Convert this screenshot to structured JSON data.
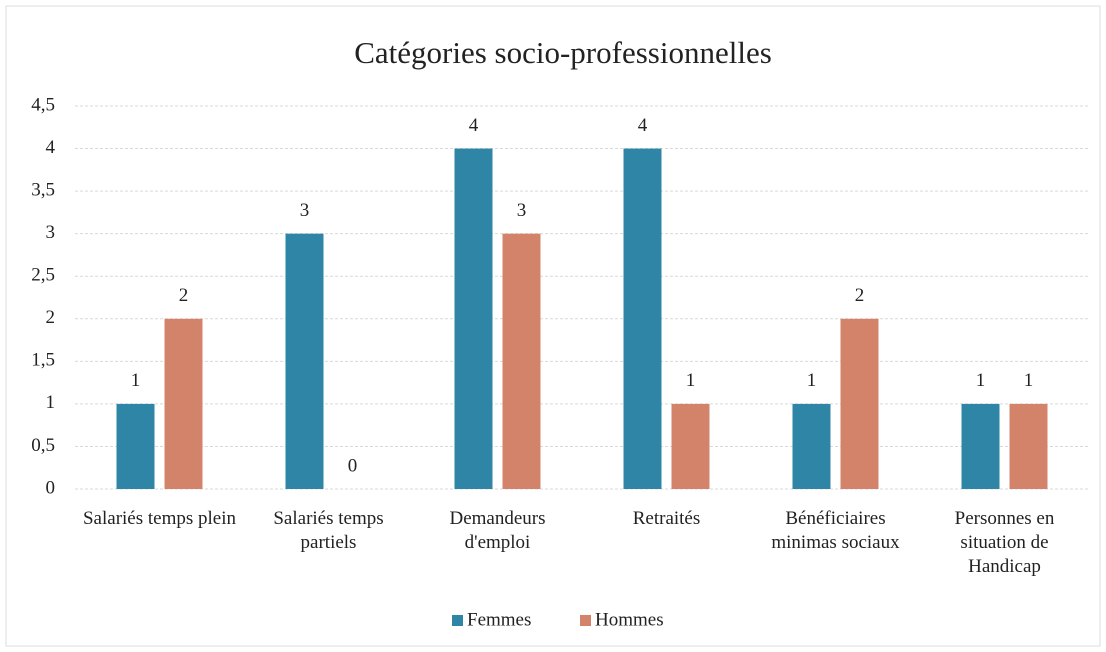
{
  "chart_data": {
    "type": "bar",
    "title": "Catégories socio-professionnelles",
    "categories": [
      "Salariés temps plein",
      "Salariés temps partiels",
      "Demandeurs d'emploi",
      "Retraités",
      "Bénéficiaires minimas sociaux",
      "Personnes en situation de Handicap"
    ],
    "series": [
      {
        "name": "Femmes",
        "color": "#2f85a6",
        "values": [
          1,
          3,
          4,
          4,
          1,
          1
        ]
      },
      {
        "name": "Hommes",
        "color": "#d4836b",
        "values": [
          2,
          0,
          3,
          1,
          2,
          1
        ]
      }
    ],
    "ylim": [
      0,
      4.5
    ],
    "yticks": [
      0,
      {
        "value": 0.5,
        "label": "0,5"
      },
      1,
      {
        "value": 1.5,
        "label": "1,5"
      },
      2,
      {
        "value": 2.5,
        "label": "2,5"
      },
      3,
      {
        "value": 3.5,
        "label": "3,5"
      },
      4,
      {
        "value": 4.5,
        "label": "4,5"
      }
    ],
    "grid": true,
    "legend": "bottom"
  }
}
